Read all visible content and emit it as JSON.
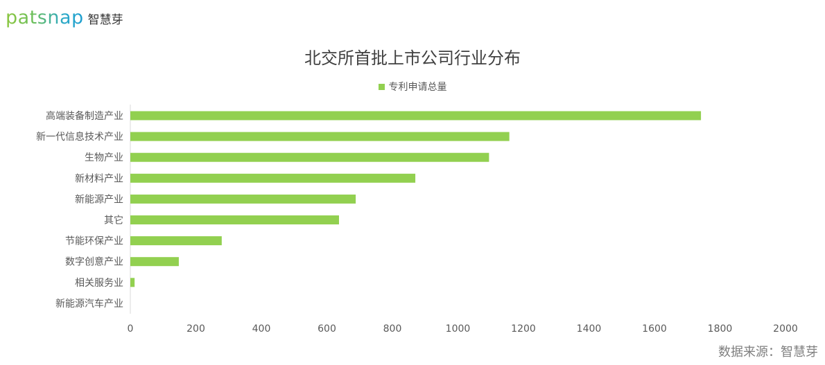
{
  "brand": {
    "logo_text": "patsnap",
    "logo_cn": "智慧芽"
  },
  "chart_data": {
    "type": "bar",
    "orientation": "horizontal",
    "title": "北交所首批上市公司行业分布",
    "legend": {
      "position": "top",
      "entries": [
        "专利申请总量"
      ]
    },
    "series": [
      {
        "name": "专利申请总量",
        "color": "#92d050",
        "values": [
          1742,
          1157,
          1095,
          870,
          688,
          637,
          279,
          148,
          13,
          0
        ]
      }
    ],
    "categories": [
      "高端装备制造产业",
      "新一代信息技术产业",
      "生物产业",
      "新材料产业",
      "新能源产业",
      "其它",
      "节能环保产业",
      "数字创意产业",
      "相关服务业",
      "新能源汽车产业"
    ],
    "xlim": [
      0,
      2000
    ],
    "xticks": [
      "0",
      "200",
      "400",
      "600",
      "800",
      "1000",
      "1200",
      "1400",
      "1600",
      "1800",
      "2000"
    ],
    "grid": false
  },
  "source_text": "数据来源：智慧芽"
}
